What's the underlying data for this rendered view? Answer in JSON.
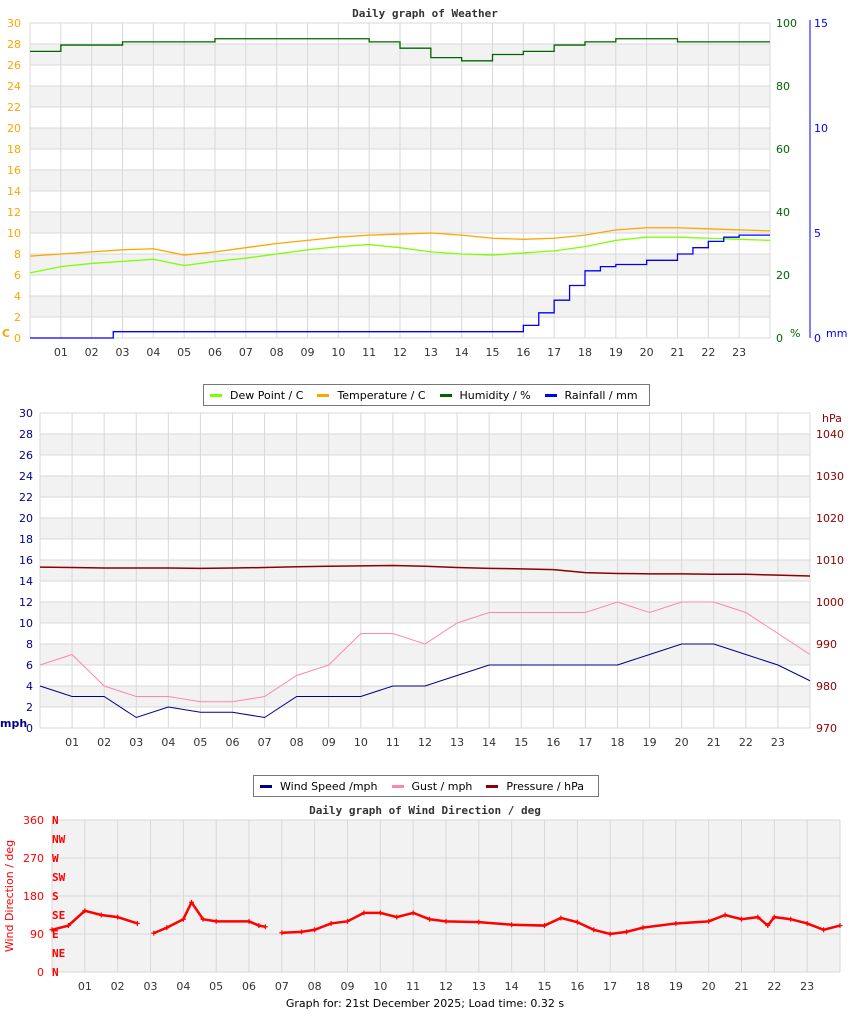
{
  "chart_data": [
    {
      "type": "line",
      "title": "Daily graph of Weather",
      "x_ticks": [
        "01",
        "02",
        "03",
        "04",
        "05",
        "06",
        "07",
        "08",
        "09",
        "10",
        "11",
        "12",
        "13",
        "14",
        "15",
        "16",
        "17",
        "18",
        "19",
        "20",
        "21",
        "22",
        "23"
      ],
      "xlim": [
        0,
        24
      ],
      "axes": {
        "left": {
          "label": "C",
          "ylim": [
            0,
            30
          ],
          "ticks": [
            0,
            2,
            4,
            6,
            8,
            10,
            12,
            14,
            16,
            18,
            20,
            22,
            24,
            26,
            28,
            30
          ],
          "color": "#ffa500"
        },
        "right1": {
          "label": "%",
          "ylim": [
            0,
            100
          ],
          "ticks": [
            0,
            20,
            40,
            60,
            80,
            100
          ],
          "color": "#006400"
        },
        "right2": {
          "label": "mm",
          "ylim": [
            0,
            15
          ],
          "ticks": [
            0,
            5,
            10,
            15
          ],
          "color": "#0000ff"
        }
      },
      "grid": true,
      "legend": "bottom",
      "series": [
        {
          "name": "Dew Point / C",
          "axis": "left",
          "color": "#7fff00",
          "x": [
            0,
            1,
            2,
            3,
            4,
            5,
            6,
            7,
            8,
            9,
            10,
            11,
            12,
            13,
            14,
            15,
            16,
            17,
            18,
            19,
            20,
            21,
            22,
            23,
            24
          ],
          "y": [
            6.2,
            6.8,
            7.1,
            7.3,
            7.5,
            6.9,
            7.3,
            7.6,
            8.0,
            8.4,
            8.7,
            8.9,
            8.6,
            8.2,
            8.0,
            7.9,
            8.1,
            8.3,
            8.7,
            9.3,
            9.6,
            9.6,
            9.5,
            9.4,
            9.3
          ]
        },
        {
          "name": "Temperature / C",
          "axis": "left",
          "color": "#ffa500",
          "x": [
            0,
            1,
            2,
            3,
            4,
            5,
            6,
            7,
            8,
            9,
            10,
            11,
            12,
            13,
            14,
            15,
            16,
            17,
            18,
            19,
            20,
            21,
            22,
            23,
            24
          ],
          "y": [
            7.8,
            8.0,
            8.2,
            8.4,
            8.5,
            7.9,
            8.2,
            8.6,
            9.0,
            9.3,
            9.6,
            9.8,
            9.9,
            10.0,
            9.8,
            9.5,
            9.4,
            9.5,
            9.8,
            10.3,
            10.5,
            10.5,
            10.4,
            10.3,
            10.2
          ]
        },
        {
          "name": "Humidity / %",
          "axis": "right1",
          "color": "#006400",
          "step": true,
          "x": [
            0,
            1,
            2,
            3,
            4,
            5,
            6,
            7,
            8,
            9,
            10,
            11,
            12,
            13,
            14,
            15,
            16,
            17,
            18,
            19,
            20,
            21,
            22,
            23,
            24
          ],
          "y": [
            91,
            93,
            93,
            94,
            94,
            94,
            95,
            95,
            95,
            95,
            95,
            94,
            92,
            89,
            88,
            90,
            91,
            93,
            94,
            95,
            95,
            94,
            94,
            94,
            94
          ]
        },
        {
          "name": "Rainfall / mm",
          "axis": "right2",
          "color": "#0000ff",
          "step": true,
          "x": [
            0,
            2.7,
            15.8,
            16,
            16.5,
            17,
            17.5,
            18,
            18.5,
            19,
            20,
            21,
            21.5,
            22,
            22.5,
            23,
            24
          ],
          "y": [
            0,
            0.3,
            0.3,
            0.6,
            1.2,
            1.8,
            2.5,
            3.2,
            3.4,
            3.5,
            3.7,
            4.0,
            4.3,
            4.6,
            4.8,
            4.9,
            4.9
          ]
        }
      ]
    },
    {
      "type": "line",
      "x_ticks": [
        "01",
        "02",
        "03",
        "04",
        "05",
        "06",
        "07",
        "08",
        "09",
        "10",
        "11",
        "12",
        "13",
        "14",
        "15",
        "16",
        "17",
        "18",
        "19",
        "20",
        "21",
        "22",
        "23"
      ],
      "xlim": [
        0,
        24
      ],
      "axes": {
        "left": {
          "label": "mph",
          "ylim": [
            0,
            30
          ],
          "ticks": [
            0,
            2,
            4,
            6,
            8,
            10,
            12,
            14,
            16,
            18,
            20,
            22,
            24,
            26,
            28,
            30
          ],
          "color": "#00008b"
        },
        "right1": {
          "label": "hPa",
          "ylim": [
            970,
            1045
          ],
          "ticks": [
            970,
            980,
            990,
            1000,
            1010,
            1020,
            1030,
            1040
          ],
          "color": "#8b0000"
        }
      },
      "grid": true,
      "legend": "bottom",
      "series": [
        {
          "name": "Wind Speed /mph",
          "axis": "left",
          "color": "#00008b",
          "x": [
            0,
            1,
            2,
            3,
            4,
            5,
            6,
            7,
            8,
            9,
            10,
            11,
            12,
            13,
            14,
            15,
            16,
            17,
            18,
            19,
            20,
            21,
            22,
            23,
            24
          ],
          "y": [
            4,
            3,
            3,
            1,
            2,
            1.5,
            1.5,
            1,
            3,
            3,
            3,
            4,
            4,
            5,
            6,
            6,
            6,
            6,
            6,
            7,
            8,
            8,
            7,
            6,
            4.5
          ]
        },
        {
          "name": "Gust / mph",
          "axis": "left",
          "color": "#ff88aa",
          "x": [
            0,
            1,
            2,
            3,
            4,
            5,
            6,
            7,
            8,
            9,
            10,
            11,
            12,
            13,
            14,
            15,
            16,
            17,
            18,
            19,
            20,
            21,
            22,
            23,
            24
          ],
          "y": [
            6,
            7,
            4,
            3,
            3,
            2.5,
            2.5,
            3,
            5,
            6,
            9,
            9,
            8,
            10,
            11,
            11,
            11,
            11,
            12,
            11,
            12,
            12,
            11,
            9,
            7
          ]
        },
        {
          "name": "Pressure / hPa",
          "axis": "right1",
          "color": "#8b0000",
          "x": [
            0,
            1,
            2,
            3,
            4,
            5,
            6,
            7,
            8,
            9,
            10,
            11,
            12,
            13,
            14,
            15,
            16,
            17,
            18,
            19,
            20,
            21,
            22,
            23,
            24
          ],
          "y": [
            1008.3,
            1008.2,
            1008.1,
            1008.1,
            1008.1,
            1008.0,
            1008.1,
            1008.2,
            1008.4,
            1008.5,
            1008.6,
            1008.7,
            1008.5,
            1008.2,
            1008.0,
            1007.9,
            1007.7,
            1007.0,
            1006.8,
            1006.7,
            1006.7,
            1006.6,
            1006.6,
            1006.4,
            1006.2
          ]
        }
      ]
    },
    {
      "type": "scatter",
      "title": "Daily graph of Wind Direction / deg",
      "x_ticks": [
        "01",
        "02",
        "03",
        "04",
        "05",
        "06",
        "07",
        "08",
        "09",
        "10",
        "11",
        "12",
        "13",
        "14",
        "15",
        "16",
        "17",
        "18",
        "19",
        "20",
        "21",
        "22",
        "23"
      ],
      "xlim": [
        0,
        24
      ],
      "ylabel": "Wind Direction / deg",
      "ylim": [
        0,
        360
      ],
      "y_ticks": [
        0,
        90,
        180,
        270,
        360
      ],
      "compass": [
        "N",
        "NE",
        "E",
        "SE",
        "S",
        "SW",
        "W",
        "NW",
        "N"
      ],
      "grid": true,
      "color": "#ff0000",
      "series": [
        {
          "x": [
            0,
            0.5,
            1,
            1.5,
            2,
            2.6,
            null,
            3.1,
            3.5,
            4,
            4.25,
            4.6,
            5,
            6,
            6.3,
            6.5,
            null,
            7,
            7.6,
            8,
            8.5,
            9,
            9.5,
            10,
            10.5,
            11,
            11.5,
            12,
            13,
            14,
            15,
            15.5,
            16,
            16.5,
            17,
            17.5,
            18,
            19,
            20,
            20.5,
            21,
            21.5,
            21.8,
            22,
            22.5,
            23,
            23.5,
            24
          ],
          "y": [
            100,
            110,
            145,
            135,
            130,
            115,
            null,
            92,
            105,
            125,
            165,
            125,
            120,
            120,
            110,
            107,
            null,
            93,
            95,
            100,
            115,
            120,
            140,
            140,
            130,
            140,
            125,
            120,
            118,
            112,
            110,
            128,
            118,
            100,
            90,
            95,
            105,
            115,
            120,
            135,
            125,
            130,
            110,
            130,
            125,
            115,
            100,
            110
          ]
        }
      ]
    }
  ],
  "legend1": [
    "Dew Point / C",
    "Temperature / C",
    "Humidity / %",
    "Rainfall / mm"
  ],
  "legend2": [
    "Wind Speed /mph",
    "Gust / mph",
    "Pressure / hPa"
  ],
  "footer": "Graph for: 21st December 2025; Load time: 0.32 s"
}
